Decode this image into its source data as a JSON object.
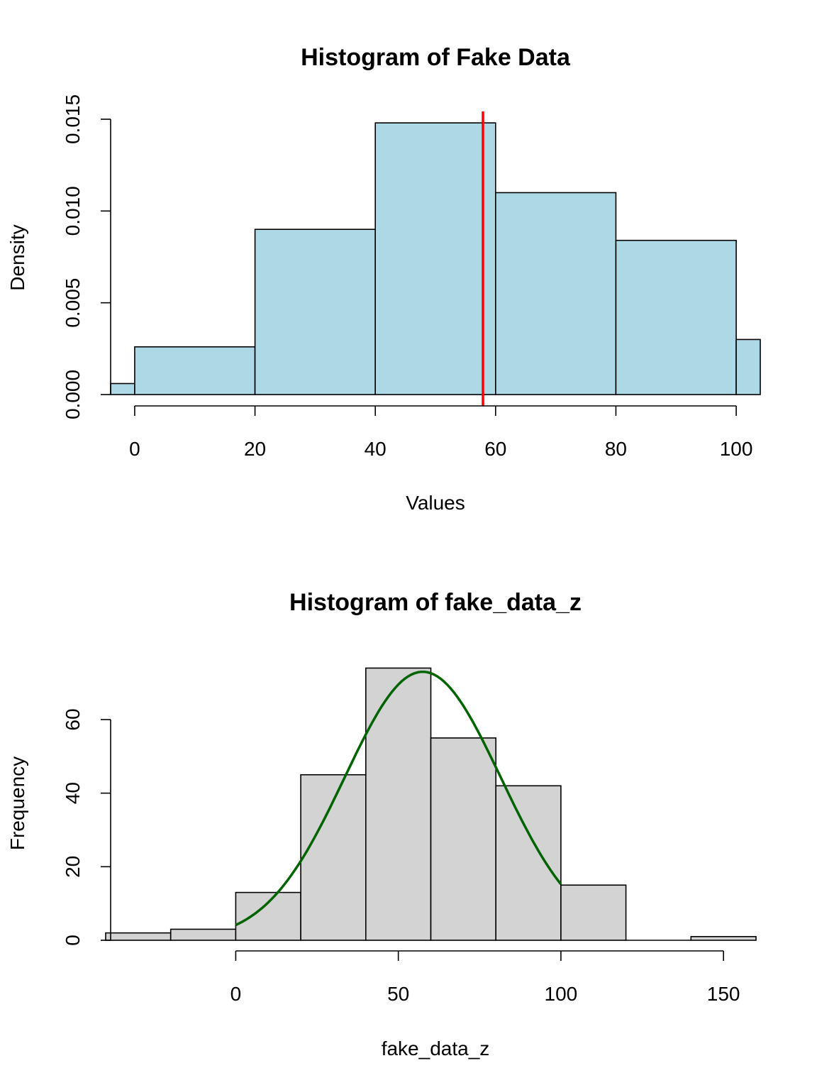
{
  "chart_data": [
    {
      "type": "histogram",
      "title": "Histogram of Fake Data",
      "xlabel": "Values",
      "ylabel": "Density",
      "x_ticks": [
        "0",
        "20",
        "40",
        "60",
        "80",
        "100"
      ],
      "y_ticks": [
        "0.000",
        "0.005",
        "0.010",
        "0.015"
      ],
      "xlim": [
        -4,
        104
      ],
      "ylim": [
        0,
        0.015
      ],
      "bar_color": "#add8e6",
      "bins": [
        {
          "start": -20,
          "end": 0,
          "value": 0.0006
        },
        {
          "start": 0,
          "end": 20,
          "value": 0.0026
        },
        {
          "start": 20,
          "end": 40,
          "value": 0.009
        },
        {
          "start": 40,
          "end": 60,
          "value": 0.0148
        },
        {
          "start": 60,
          "end": 80,
          "value": 0.011
        },
        {
          "start": 80,
          "end": 100,
          "value": 0.0084
        },
        {
          "start": 100,
          "end": 120,
          "value": 0.003
        }
      ],
      "vline": {
        "x": 57.9,
        "color": "#ff0000"
      }
    },
    {
      "type": "histogram",
      "title": "Histogram of fake_data_z",
      "xlabel": "fake_data_z",
      "ylabel": "Frequency",
      "x_ticks": [
        "0",
        "50",
        "100",
        "150"
      ],
      "y_ticks": [
        "0",
        "20",
        "40",
        "60"
      ],
      "xlim": [
        -40,
        160
      ],
      "ylim": [
        0,
        70
      ],
      "bar_color": "#d3d3d3",
      "bins": [
        {
          "start": -40,
          "end": -20,
          "value": 2
        },
        {
          "start": -20,
          "end": 0,
          "value": 3
        },
        {
          "start": 0,
          "end": 20,
          "value": 13
        },
        {
          "start": 20,
          "end": 40,
          "value": 45
        },
        {
          "start": 40,
          "end": 60,
          "value": 74
        },
        {
          "start": 60,
          "end": 80,
          "value": 55
        },
        {
          "start": 80,
          "end": 100,
          "value": 42
        },
        {
          "start": 100,
          "end": 120,
          "value": 15
        },
        {
          "start": 120,
          "end": 140,
          "value": 0
        },
        {
          "start": 140,
          "end": 160,
          "value": 1
        }
      ],
      "curve": {
        "color": "#006400",
        "x_range": [
          0,
          100
        ],
        "mean": 57.5,
        "sd": 24,
        "peak": 73
      }
    }
  ]
}
